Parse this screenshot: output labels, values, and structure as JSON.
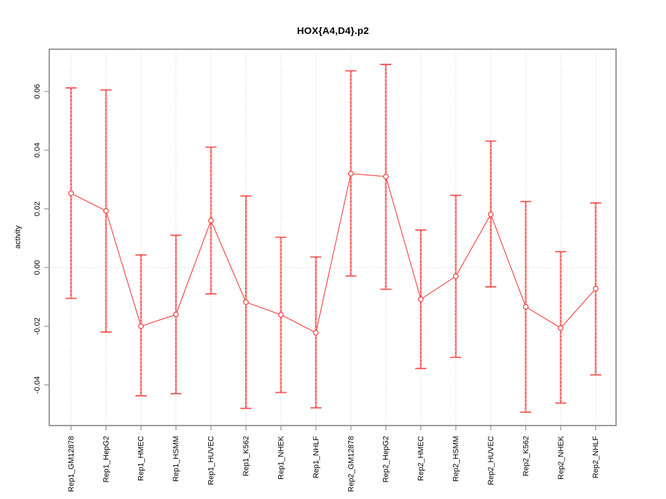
{
  "chart_data": {
    "type": "line",
    "title": "HOX{A4,D4}.p2",
    "xlabel": "",
    "ylabel": "activity",
    "categories": [
      "Rep1_GM12878",
      "Rep1_HepG2",
      "Rep1_HMEC",
      "Rep1_HSMM",
      "Rep1_HUVEC",
      "Rep1_K562",
      "Rep1_NHEK",
      "Rep1_NHLF",
      "Rep2_GM12878",
      "Rep2_HepG2",
      "Rep2_HMEC",
      "Rep2_HSMM",
      "Rep2_HUVEC",
      "Rep2_K562",
      "Rep2_NHEK",
      "Rep2_NHLF"
    ],
    "series": [
      {
        "name": "activity",
        "values": [
          0.0253,
          0.0193,
          -0.02,
          -0.016,
          0.016,
          -0.0118,
          -0.0161,
          -0.0222,
          0.032,
          0.031,
          -0.0108,
          -0.003,
          0.0181,
          -0.0134,
          -0.0206,
          -0.0072
        ],
        "lower": [
          -0.0105,
          -0.022,
          -0.0437,
          -0.043,
          -0.009,
          -0.048,
          -0.0426,
          -0.0478,
          -0.0029,
          -0.0074,
          -0.0344,
          -0.0306,
          -0.0066,
          -0.0493,
          -0.0462,
          -0.0366
        ],
        "upper": [
          0.0612,
          0.0605,
          0.0043,
          0.011,
          0.041,
          0.0244,
          0.0103,
          0.0036,
          0.067,
          0.0692,
          0.0128,
          0.0246,
          0.0431,
          0.0225,
          0.0054,
          0.022
        ]
      }
    ],
    "ylim": [
      -0.0543,
      0.0743
    ],
    "yticks": [
      -0.04,
      -0.02,
      0.0,
      0.02,
      0.04,
      0.06
    ],
    "ytick_labels": [
      "-0.04",
      "-0.02",
      "0.00",
      "0.02",
      "0.04",
      "0.06"
    ],
    "grid": "dotted vertical line at each category; dotted horizontal line at y=0 only",
    "legend": "none",
    "errorbars": true,
    "colors": {
      "line": "#f23b3b",
      "point": "#f23b3b",
      "errorbar_fill": "#ff9c9c",
      "errorbar_dash": "#ee3434",
      "errorbar_cap": "#f45353",
      "box": "#9a9a9a",
      "tick": "#9a9a9a",
      "grid": "#d8d8d8",
      "text": "#000000"
    }
  }
}
